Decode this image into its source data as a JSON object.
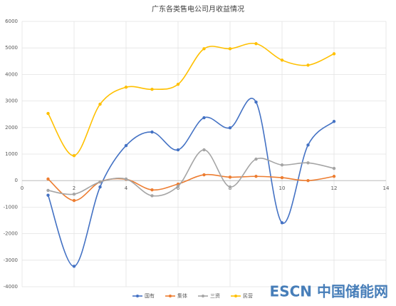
{
  "chart_data": {
    "type": "line",
    "title": "广东各类售电公司月收益情况",
    "xlim": [
      0,
      14
    ],
    "xticks": [
      0,
      2,
      4,
      6,
      8,
      10,
      12,
      14
    ],
    "ylim": [
      -4000,
      6000
    ],
    "yticks": [
      -4000,
      -3000,
      -2000,
      -1000,
      0,
      1000,
      2000,
      3000,
      4000,
      5000,
      6000
    ],
    "grid": true,
    "smooth": true,
    "legend": "bottom",
    "x": [
      1,
      2,
      3,
      4,
      5,
      6,
      7,
      8,
      9,
      10,
      11,
      12
    ],
    "series": [
      {
        "name": "国有",
        "color": "#4472c4",
        "values": [
          -550,
          -3230,
          -240,
          1320,
          1830,
          1160,
          2370,
          1990,
          2960,
          -1590,
          1340,
          2230
        ]
      },
      {
        "name": "集体",
        "color": "#ed7d31",
        "values": [
          60,
          -750,
          -50,
          50,
          -350,
          -130,
          220,
          130,
          160,
          110,
          0,
          160
        ]
      },
      {
        "name": "三资",
        "color": "#a5a5a5",
        "values": [
          -370,
          -510,
          -50,
          60,
          -570,
          -210,
          1160,
          -240,
          810,
          590,
          670,
          460
        ]
      },
      {
        "name": "民营",
        "color": "#ffc000",
        "values": [
          2530,
          940,
          2880,
          3520,
          3440,
          3630,
          4970,
          4970,
          5160,
          4540,
          4350,
          4780
        ]
      }
    ],
    "watermark": "ESCN 中国储能网"
  }
}
